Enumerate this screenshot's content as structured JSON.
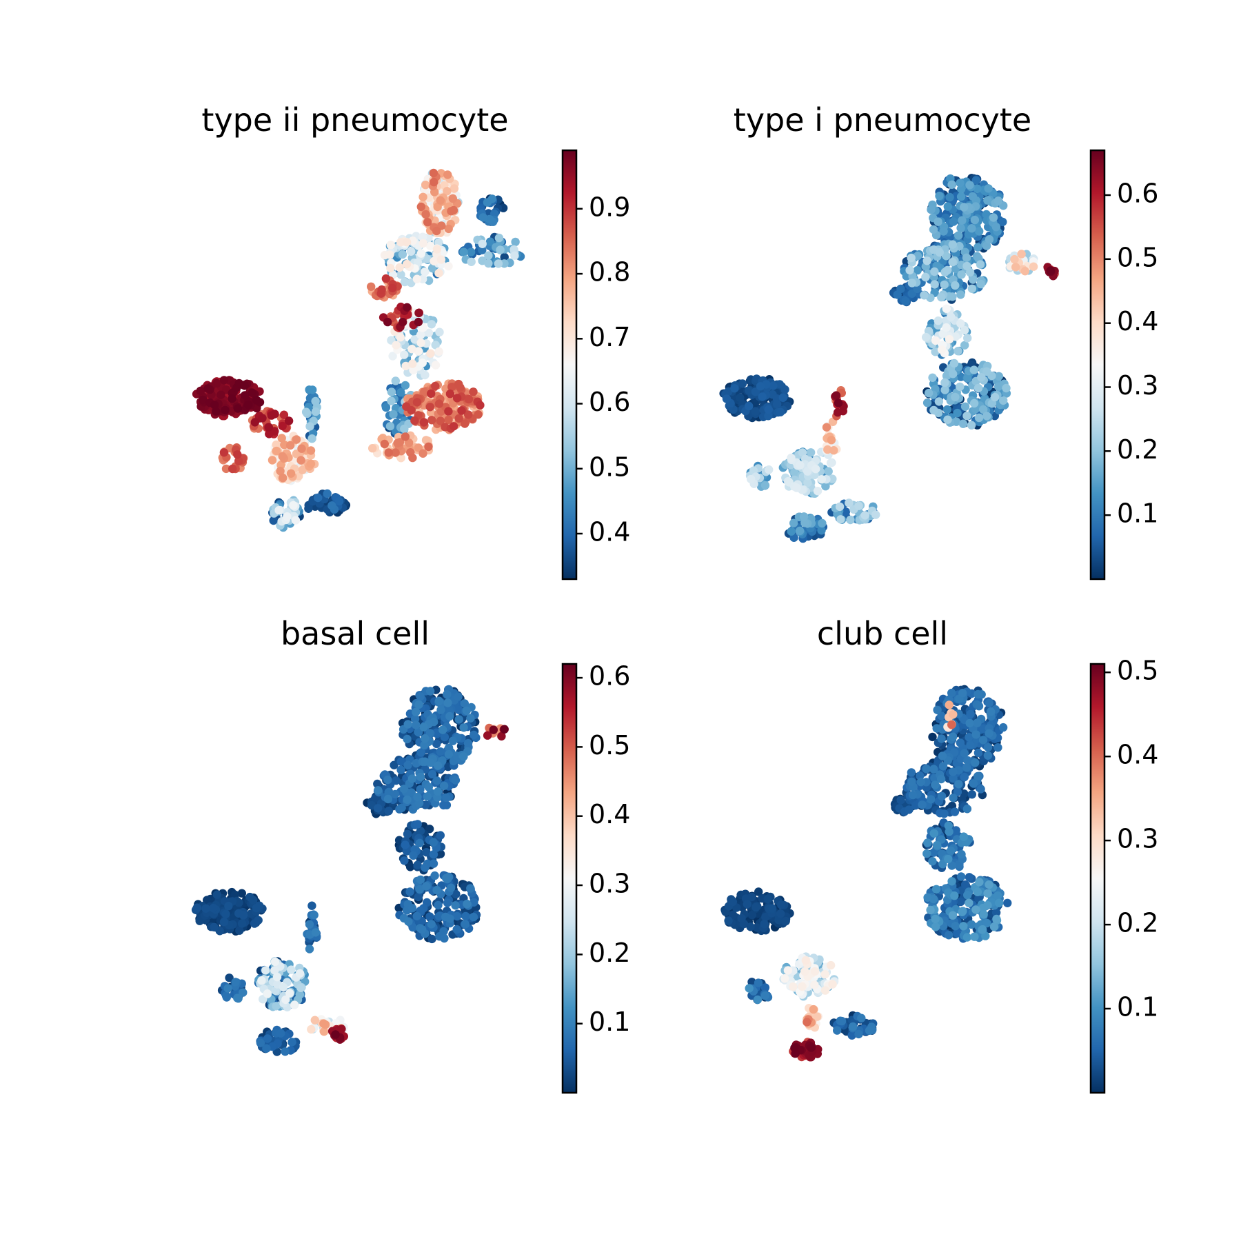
{
  "colormap": {
    "name": "RdBu_r",
    "stops": [
      "#053061",
      "#2166ac",
      "#4393c3",
      "#92c5de",
      "#d1e5f0",
      "#f7f7f7",
      "#fddbc7",
      "#f4a582",
      "#d6604d",
      "#b2182b",
      "#67001f"
    ]
  },
  "chart_data": [
    {
      "type": "scatter",
      "title": "type ii pneumocyte",
      "value_range": [
        0.33,
        0.99
      ],
      "colorbar_ticks": [
        "0.4",
        "0.5",
        "0.6",
        "0.7",
        "0.8",
        "0.9"
      ],
      "seed": 11,
      "regions": [
        {
          "cx": 0.16,
          "cy": 0.58,
          "rx": 0.09,
          "ry": 0.045,
          "n": 150,
          "lo": 0.93,
          "hi": 0.99
        },
        {
          "cx": 0.27,
          "cy": 0.64,
          "rx": 0.05,
          "ry": 0.03,
          "n": 35,
          "lo": 0.82,
          "hi": 0.95
        },
        {
          "cx": 0.17,
          "cy": 0.73,
          "rx": 0.03,
          "ry": 0.03,
          "n": 25,
          "lo": 0.8,
          "hi": 0.9
        },
        {
          "cx": 0.33,
          "cy": 0.73,
          "rx": 0.06,
          "ry": 0.06,
          "n": 90,
          "lo": 0.6,
          "hi": 0.82
        },
        {
          "cx": 0.38,
          "cy": 0.62,
          "rx": 0.015,
          "ry": 0.07,
          "n": 30,
          "lo": 0.35,
          "hi": 0.55
        },
        {
          "cx": 0.42,
          "cy": 0.84,
          "rx": 0.06,
          "ry": 0.025,
          "n": 40,
          "lo": 0.33,
          "hi": 0.42
        },
        {
          "cx": 0.31,
          "cy": 0.86,
          "rx": 0.04,
          "ry": 0.04,
          "n": 40,
          "lo": 0.35,
          "hi": 0.65
        },
        {
          "cx": 0.72,
          "cy": 0.1,
          "rx": 0.05,
          "ry": 0.08,
          "n": 140,
          "lo": 0.55,
          "hi": 0.85
        },
        {
          "cx": 0.86,
          "cy": 0.12,
          "rx": 0.04,
          "ry": 0.03,
          "n": 30,
          "lo": 0.33,
          "hi": 0.45
        },
        {
          "cx": 0.86,
          "cy": 0.22,
          "rx": 0.08,
          "ry": 0.04,
          "n": 50,
          "lo": 0.35,
          "hi": 0.6
        },
        {
          "cx": 0.66,
          "cy": 0.24,
          "rx": 0.09,
          "ry": 0.06,
          "n": 110,
          "lo": 0.4,
          "hi": 0.7
        },
        {
          "cx": 0.57,
          "cy": 0.31,
          "rx": 0.04,
          "ry": 0.025,
          "n": 30,
          "lo": 0.78,
          "hi": 0.9
        },
        {
          "cx": 0.62,
          "cy": 0.38,
          "rx": 0.05,
          "ry": 0.03,
          "n": 25,
          "lo": 0.85,
          "hi": 0.98
        },
        {
          "cx": 0.66,
          "cy": 0.45,
          "rx": 0.07,
          "ry": 0.08,
          "n": 80,
          "lo": 0.45,
          "hi": 0.7
        },
        {
          "cx": 0.73,
          "cy": 0.6,
          "rx": 0.1,
          "ry": 0.06,
          "n": 150,
          "lo": 0.75,
          "hi": 0.9
        },
        {
          "cx": 0.61,
          "cy": 0.6,
          "rx": 0.04,
          "ry": 0.07,
          "n": 50,
          "lo": 0.35,
          "hi": 0.55
        },
        {
          "cx": 0.62,
          "cy": 0.7,
          "rx": 0.08,
          "ry": 0.03,
          "n": 50,
          "lo": 0.7,
          "hi": 0.85
        }
      ]
    },
    {
      "type": "scatter",
      "title": "type i pneumocyte",
      "value_range": [
        0.0,
        0.67
      ],
      "colorbar_ticks": [
        "0.1",
        "0.2",
        "0.3",
        "0.4",
        "0.5",
        "0.6"
      ],
      "seed": 23,
      "regions": [
        {
          "cx": 0.72,
          "cy": 0.13,
          "rx": 0.1,
          "ry": 0.1,
          "n": 230,
          "lo": 0.0,
          "hi": 0.18
        },
        {
          "cx": 0.66,
          "cy": 0.27,
          "rx": 0.11,
          "ry": 0.07,
          "n": 140,
          "lo": 0.02,
          "hi": 0.24
        },
        {
          "cx": 0.56,
          "cy": 0.32,
          "rx": 0.04,
          "ry": 0.025,
          "n": 25,
          "lo": 0.0,
          "hi": 0.1
        },
        {
          "cx": 0.87,
          "cy": 0.25,
          "rx": 0.04,
          "ry": 0.025,
          "n": 25,
          "lo": 0.2,
          "hi": 0.45
        },
        {
          "cx": 0.94,
          "cy": 0.27,
          "rx": 0.015,
          "ry": 0.015,
          "n": 10,
          "lo": 0.55,
          "hi": 0.67
        },
        {
          "cx": 0.67,
          "cy": 0.42,
          "rx": 0.06,
          "ry": 0.06,
          "n": 70,
          "lo": 0.1,
          "hi": 0.35
        },
        {
          "cx": 0.72,
          "cy": 0.57,
          "rx": 0.11,
          "ry": 0.08,
          "n": 180,
          "lo": 0.0,
          "hi": 0.22
        },
        {
          "cx": 0.16,
          "cy": 0.58,
          "rx": 0.09,
          "ry": 0.05,
          "n": 150,
          "lo": 0.0,
          "hi": 0.06
        },
        {
          "cx": 0.38,
          "cy": 0.6,
          "rx": 0.02,
          "ry": 0.04,
          "n": 18,
          "lo": 0.5,
          "hi": 0.67
        },
        {
          "cx": 0.36,
          "cy": 0.68,
          "rx": 0.02,
          "ry": 0.05,
          "n": 18,
          "lo": 0.3,
          "hi": 0.5
        },
        {
          "cx": 0.3,
          "cy": 0.76,
          "rx": 0.07,
          "ry": 0.06,
          "n": 110,
          "lo": 0.1,
          "hi": 0.3
        },
        {
          "cx": 0.17,
          "cy": 0.77,
          "rx": 0.03,
          "ry": 0.03,
          "n": 25,
          "lo": 0.05,
          "hi": 0.3
        },
        {
          "cx": 0.42,
          "cy": 0.86,
          "rx": 0.06,
          "ry": 0.025,
          "n": 40,
          "lo": 0.05,
          "hi": 0.25
        },
        {
          "cx": 0.29,
          "cy": 0.9,
          "rx": 0.05,
          "ry": 0.03,
          "n": 50,
          "lo": 0.0,
          "hi": 0.18
        }
      ]
    },
    {
      "type": "scatter",
      "title": "basal cell",
      "value_range": [
        0.0,
        0.62
      ],
      "colorbar_ticks": [
        "0.1",
        "0.2",
        "0.3",
        "0.4",
        "0.5",
        "0.6"
      ],
      "seed": 37,
      "regions": [
        {
          "cx": 0.72,
          "cy": 0.13,
          "rx": 0.1,
          "ry": 0.1,
          "n": 230,
          "lo": 0.0,
          "hi": 0.1
        },
        {
          "cx": 0.87,
          "cy": 0.14,
          "rx": 0.03,
          "ry": 0.015,
          "n": 12,
          "lo": 0.35,
          "hi": 0.62
        },
        {
          "cx": 0.66,
          "cy": 0.27,
          "rx": 0.11,
          "ry": 0.07,
          "n": 140,
          "lo": 0.0,
          "hi": 0.1
        },
        {
          "cx": 0.56,
          "cy": 0.32,
          "rx": 0.04,
          "ry": 0.025,
          "n": 25,
          "lo": 0.0,
          "hi": 0.05
        },
        {
          "cx": 0.67,
          "cy": 0.42,
          "rx": 0.06,
          "ry": 0.06,
          "n": 70,
          "lo": 0.0,
          "hi": 0.08
        },
        {
          "cx": 0.72,
          "cy": 0.57,
          "rx": 0.11,
          "ry": 0.08,
          "n": 180,
          "lo": 0.0,
          "hi": 0.1
        },
        {
          "cx": 0.16,
          "cy": 0.58,
          "rx": 0.09,
          "ry": 0.05,
          "n": 150,
          "lo": 0.0,
          "hi": 0.04
        },
        {
          "cx": 0.3,
          "cy": 0.76,
          "rx": 0.07,
          "ry": 0.06,
          "n": 110,
          "lo": 0.0,
          "hi": 0.3
        },
        {
          "cx": 0.17,
          "cy": 0.77,
          "rx": 0.03,
          "ry": 0.03,
          "n": 25,
          "lo": 0.0,
          "hi": 0.1
        },
        {
          "cx": 0.38,
          "cy": 0.62,
          "rx": 0.015,
          "ry": 0.06,
          "n": 25,
          "lo": 0.0,
          "hi": 0.1
        },
        {
          "cx": 0.42,
          "cy": 0.86,
          "rx": 0.05,
          "ry": 0.02,
          "n": 25,
          "lo": 0.2,
          "hi": 0.45
        },
        {
          "cx": 0.45,
          "cy": 0.88,
          "rx": 0.02,
          "ry": 0.015,
          "n": 14,
          "lo": 0.55,
          "hi": 0.62
        },
        {
          "cx": 0.29,
          "cy": 0.9,
          "rx": 0.05,
          "ry": 0.03,
          "n": 50,
          "lo": 0.0,
          "hi": 0.08
        }
      ]
    },
    {
      "type": "scatter",
      "title": "club cell",
      "value_range": [
        0.0,
        0.51
      ],
      "colorbar_ticks": [
        "0.1",
        "0.2",
        "0.3",
        "0.4",
        "0.5"
      ],
      "seed": 53,
      "regions": [
        {
          "cx": 0.72,
          "cy": 0.13,
          "rx": 0.1,
          "ry": 0.1,
          "n": 230,
          "lo": 0.0,
          "hi": 0.08
        },
        {
          "cx": 0.67,
          "cy": 0.1,
          "rx": 0.015,
          "ry": 0.03,
          "n": 8,
          "lo": 0.25,
          "hi": 0.42
        },
        {
          "cx": 0.66,
          "cy": 0.27,
          "rx": 0.11,
          "ry": 0.07,
          "n": 140,
          "lo": 0.0,
          "hi": 0.08
        },
        {
          "cx": 0.56,
          "cy": 0.32,
          "rx": 0.04,
          "ry": 0.025,
          "n": 25,
          "lo": 0.0,
          "hi": 0.05
        },
        {
          "cx": 0.67,
          "cy": 0.42,
          "rx": 0.06,
          "ry": 0.06,
          "n": 70,
          "lo": 0.0,
          "hi": 0.1
        },
        {
          "cx": 0.72,
          "cy": 0.57,
          "rx": 0.11,
          "ry": 0.08,
          "n": 180,
          "lo": 0.0,
          "hi": 0.12
        },
        {
          "cx": 0.16,
          "cy": 0.58,
          "rx": 0.09,
          "ry": 0.05,
          "n": 150,
          "lo": 0.0,
          "hi": 0.03
        },
        {
          "cx": 0.3,
          "cy": 0.74,
          "rx": 0.07,
          "ry": 0.05,
          "n": 100,
          "lo": 0.1,
          "hi": 0.28
        },
        {
          "cx": 0.17,
          "cy": 0.77,
          "rx": 0.03,
          "ry": 0.03,
          "n": 25,
          "lo": 0.0,
          "hi": 0.1
        },
        {
          "cx": 0.42,
          "cy": 0.86,
          "rx": 0.06,
          "ry": 0.025,
          "n": 40,
          "lo": 0.0,
          "hi": 0.08
        },
        {
          "cx": 0.31,
          "cy": 0.84,
          "rx": 0.02,
          "ry": 0.03,
          "n": 20,
          "lo": 0.25,
          "hi": 0.4
        },
        {
          "cx": 0.29,
          "cy": 0.92,
          "rx": 0.04,
          "ry": 0.02,
          "n": 40,
          "lo": 0.42,
          "hi": 0.51
        }
      ]
    }
  ]
}
